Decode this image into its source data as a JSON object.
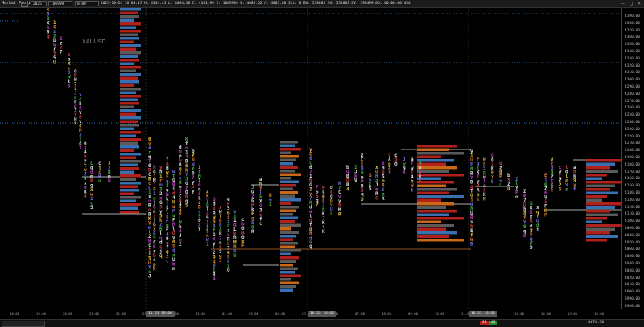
{
  "window": {
    "title": "Market Profile",
    "id_box": "2025",
    "info": "2025-10-24 16:00:17 H: 4344.45 L: 4064.18 C: 4101.99 V: 1069909 B: 4085.62 A: 4085.80 Int: 8 BV: 558805 AV: 554803 DV: 298499 DD: 00:00:00.454",
    "value_box_1": "106909",
    "value_box_2": "0.00",
    "min_icon": "minimize-icon",
    "max_icon": "maximize-icon",
    "close_icon": "close-icon"
  },
  "chart": {
    "symbol": "XAUUSD",
    "colors": {
      "background": "#000000",
      "profile_red": "#b0201c",
      "profile_blue": "#3a6fb0",
      "profile_grey": "#5a5a5a",
      "profile_orange": "#c86818",
      "poc_line": "#c87030",
      "level_line": "#e6e6e6"
    },
    "price_labels": [
      "4390.00",
      "4380.00",
      "4370.00",
      "4360.00",
      "4350.00",
      "4340.00",
      "4330.00",
      "4320.00",
      "4310.00",
      "4300.00",
      "4290.00",
      "4280.00",
      "4270.00",
      "4260.00",
      "4250.00",
      "4240.00",
      "4230.00",
      "4220.00",
      "4210.00",
      "4200.00",
      "4190.00",
      "4180.00",
      "4170.00",
      "4160.00",
      "4150.00",
      "4140.00",
      "4130.00",
      "4120.00",
      "4110.00",
      "4100.00",
      "4090.00",
      "4080.00",
      "4070.00",
      "4060.00",
      "4050.00",
      "4040.00",
      "4030.00",
      "4020.00",
      "4010.00",
      "4000.00",
      "3990.00",
      "3980.00"
    ],
    "sessions": [
      "10-21 18:00",
      "10-22 18:00",
      "10-23 18:00"
    ],
    "time_labels": [
      "18:00",
      "19:00",
      "20:00",
      "21:00",
      "22:00",
      "23:00",
      "00:00",
      "01:00",
      "02:00",
      "03:00",
      "04:00",
      "05:00",
      "06:00",
      "07:00",
      "08:00",
      "09:00",
      "10:00",
      "11:00",
      "12:00",
      "13:00",
      "14:00",
      "15:00",
      "16:00"
    ]
  },
  "statusbar": {
    "left_box": "",
    "price_red": "23",
    "price_green": "45",
    "last_price": "4074.50"
  }
}
